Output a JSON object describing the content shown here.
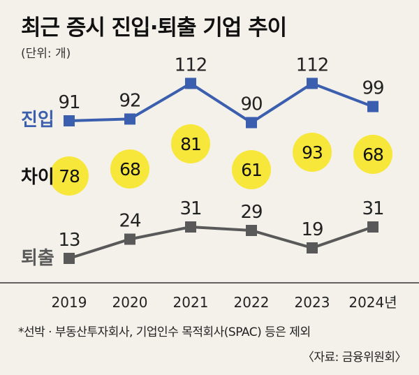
{
  "chart_data": {
    "type": "line",
    "title": "최근 증시 진입·퇴출 기업 추이",
    "unit": "(단위: 개)",
    "categories": [
      "2019",
      "2020",
      "2021",
      "2022",
      "2023",
      "2024년"
    ],
    "series": [
      {
        "name": "진입",
        "values": [
          91,
          92,
          112,
          90,
          112,
          99
        ],
        "color": "#3b5fae"
      },
      {
        "name": "퇴출",
        "values": [
          13,
          24,
          31,
          29,
          19,
          31
        ],
        "color": "#595959"
      }
    ],
    "difference": {
      "name": "차이",
      "values": [
        78,
        68,
        81,
        61,
        93,
        68
      ],
      "color": "#f7e73a"
    },
    "grid": false
  },
  "footnote": "*선박 · 부동산투자회사, 기업인수 목적회사(SPAC) 등은 제외",
  "source": "〈자료: 금융위원회〉"
}
